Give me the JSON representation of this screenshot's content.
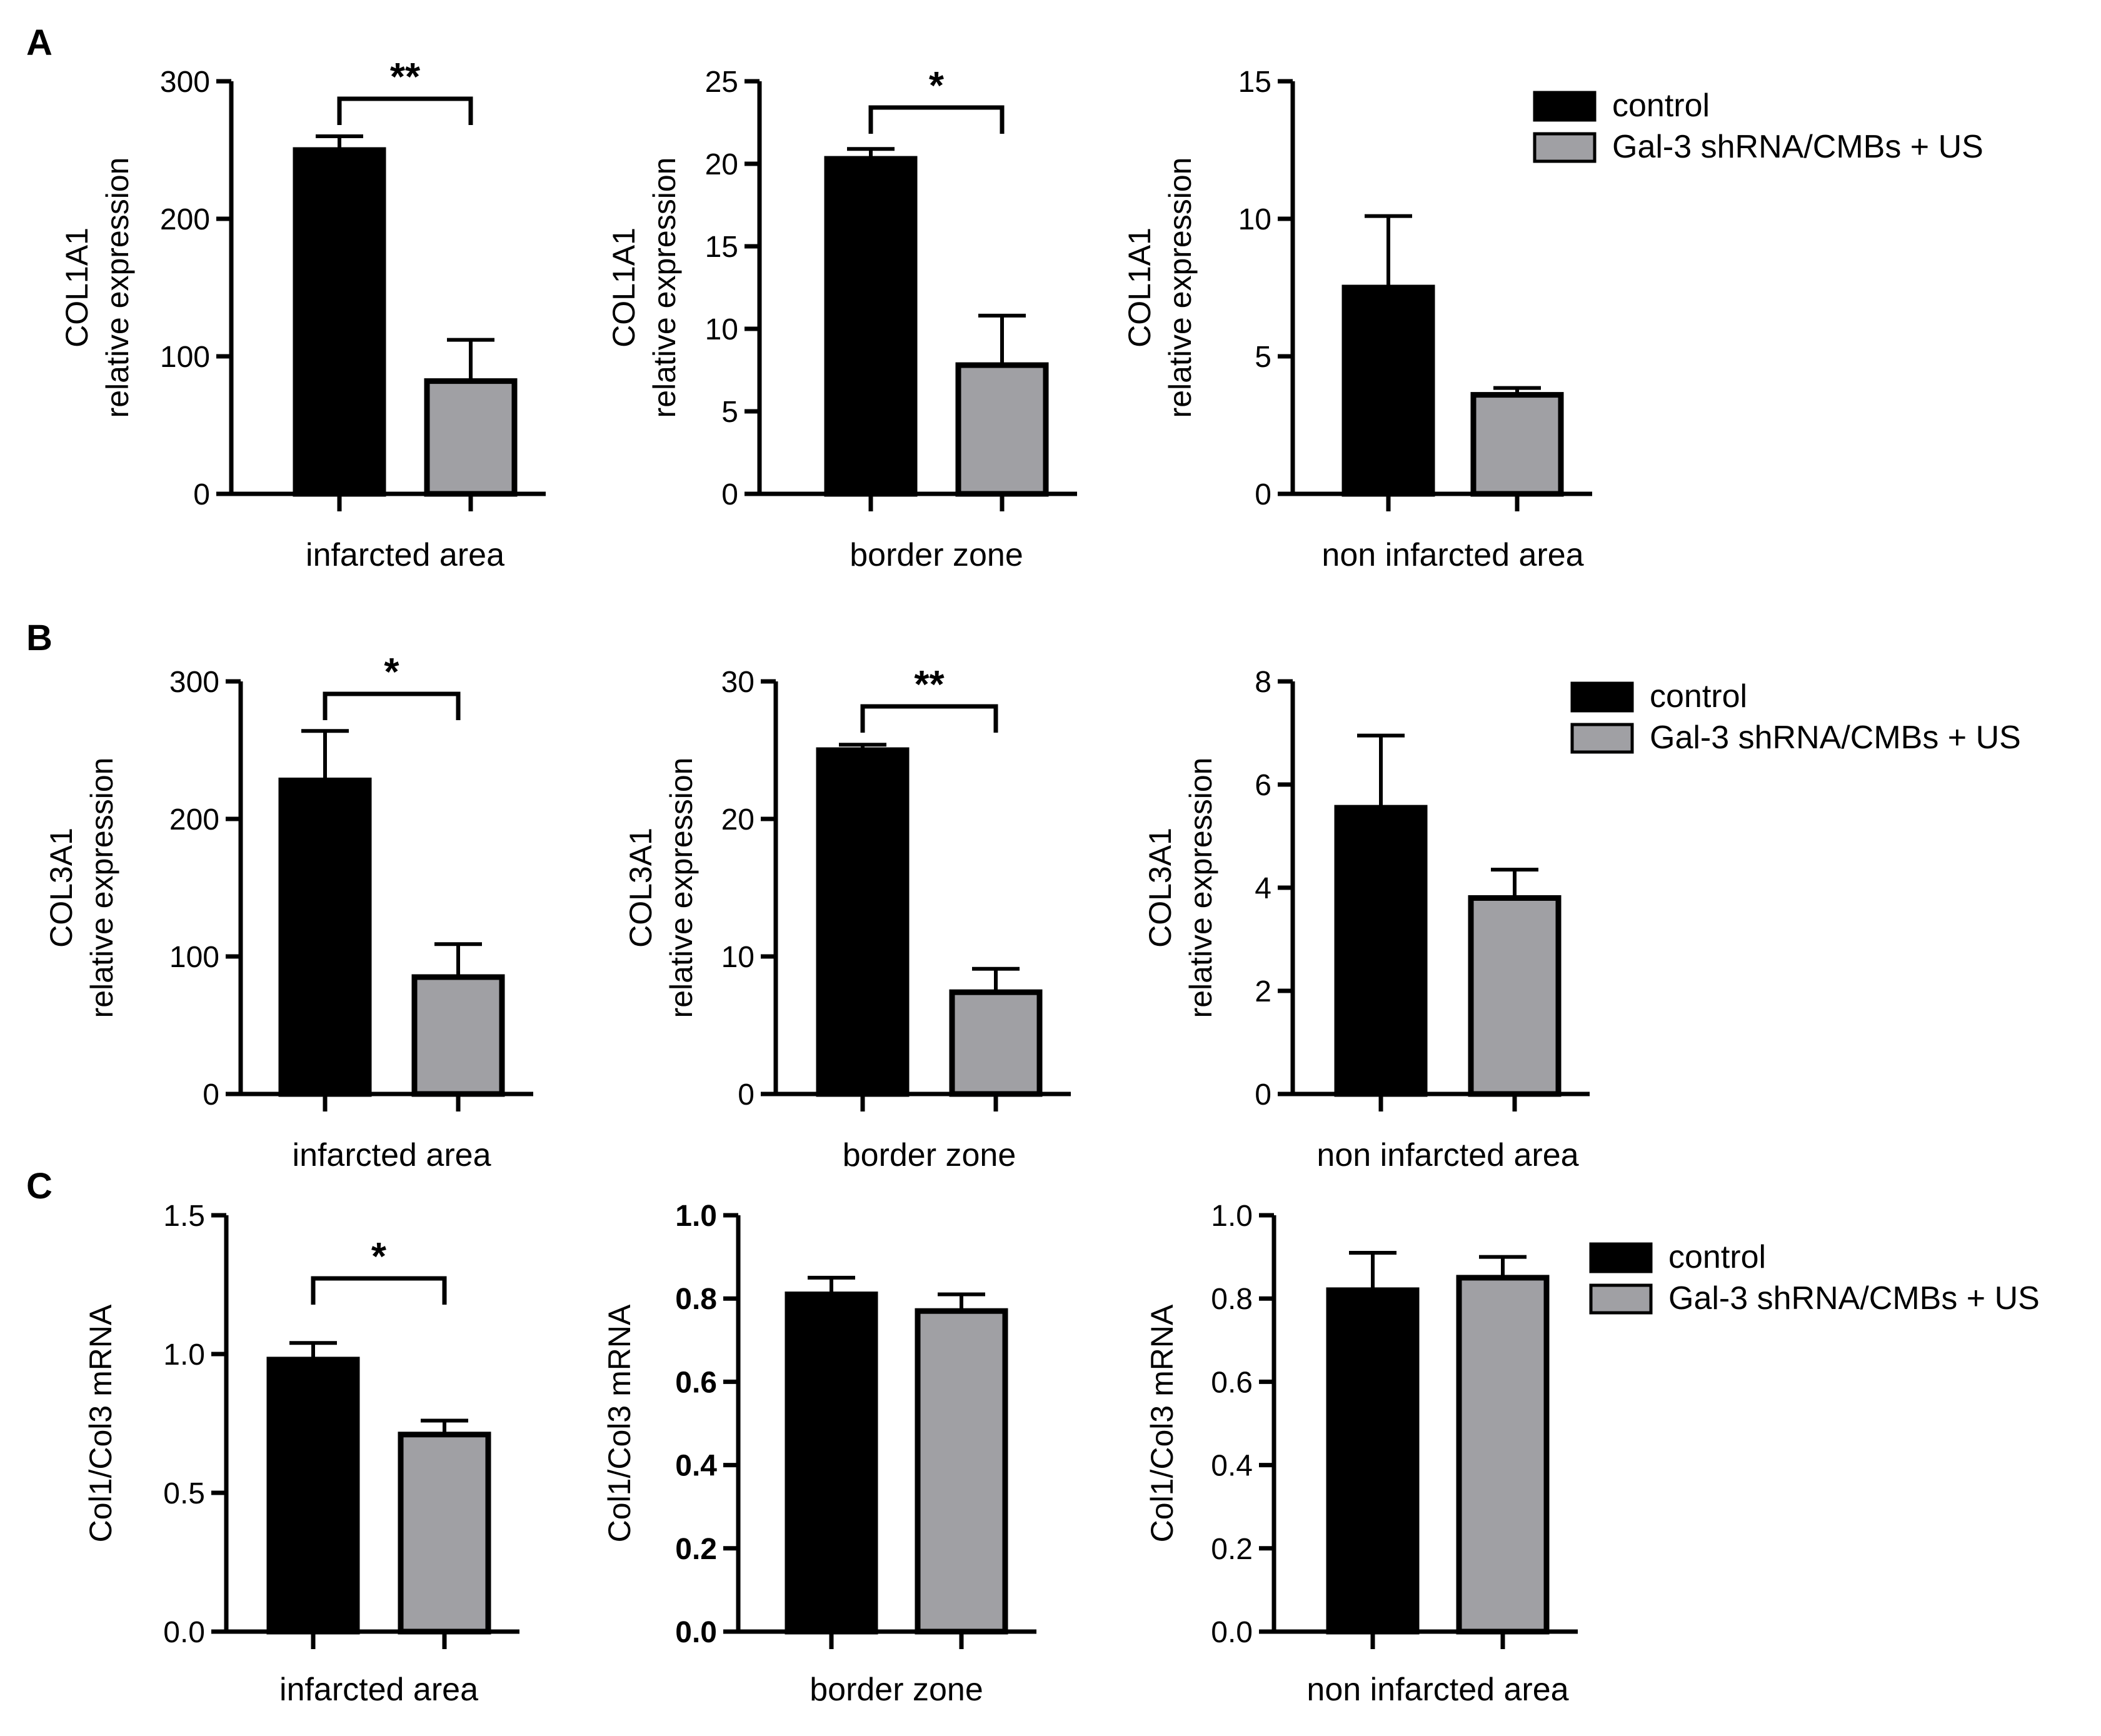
{
  "panel_letters": [
    "A",
    "B",
    "C"
  ],
  "legend": {
    "entries": [
      {
        "label": "control",
        "color": "#000000"
      },
      {
        "label": "Gal-3 shRNA/CMBs + US",
        "color": "#a0a0a4"
      }
    ]
  },
  "chart_data": [
    {
      "id": "A1",
      "type": "bar",
      "categories": [
        "control",
        "Gal-3 shRNA/CMBs + US"
      ],
      "values": [
        250,
        82
      ],
      "errors": [
        10,
        30
      ],
      "xlabel": "infarcted area",
      "ylabel": [
        "COL1A1",
        "relative expression"
      ],
      "ylim": [
        0,
        300
      ],
      "yticks": [
        "0",
        "100",
        "200",
        "300"
      ],
      "significance": "**"
    },
    {
      "id": "A2",
      "type": "bar",
      "categories": [
        "control",
        "Gal-3 shRNA/CMBs + US"
      ],
      "values": [
        20.3,
        7.8
      ],
      "errors": [
        0.6,
        3.0
      ],
      "xlabel": "border zone",
      "ylabel": [
        "COL1A1",
        "relative expression"
      ],
      "ylim": [
        0,
        25
      ],
      "yticks": [
        "0",
        "5",
        "10",
        "15",
        "20",
        "25"
      ],
      "significance": "*"
    },
    {
      "id": "A3",
      "type": "bar",
      "categories": [
        "control",
        "Gal-3 shRNA/CMBs + US"
      ],
      "values": [
        7.5,
        3.6
      ],
      "errors": [
        2.6,
        0.25
      ],
      "xlabel": "non infarcted area",
      "ylabel": [
        "COL1A1",
        "relative expression"
      ],
      "ylim": [
        0,
        15
      ],
      "yticks": [
        "0",
        "5",
        "10",
        "15"
      ],
      "significance": ""
    },
    {
      "id": "B1",
      "type": "bar",
      "categories": [
        "control",
        "Gal-3 shRNA/CMBs + US"
      ],
      "values": [
        228,
        85
      ],
      "errors": [
        36,
        24
      ],
      "xlabel": "infarcted area",
      "ylabel": [
        "COL3A1",
        "relative expression"
      ],
      "ylim": [
        0,
        300
      ],
      "yticks": [
        "0",
        "100",
        "200",
        "300"
      ],
      "significance": "*"
    },
    {
      "id": "B2",
      "type": "bar",
      "categories": [
        "control",
        "Gal-3 shRNA/CMBs + US"
      ],
      "values": [
        25,
        7.4
      ],
      "errors": [
        0.4,
        1.7
      ],
      "xlabel": "border zone",
      "ylabel": [
        "COL3A1",
        "relative expression"
      ],
      "ylim": [
        0,
        30
      ],
      "yticks": [
        "0",
        "10",
        "20",
        "30"
      ],
      "significance": "**"
    },
    {
      "id": "B3",
      "type": "bar",
      "categories": [
        "control",
        "Gal-3 shRNA/CMBs + US"
      ],
      "values": [
        5.55,
        3.8
      ],
      "errors": [
        1.4,
        0.55
      ],
      "xlabel": "non infarcted area",
      "ylabel": [
        "COL3A1",
        "relative expression"
      ],
      "ylim": [
        0,
        8
      ],
      "yticks": [
        "0",
        "2",
        "4",
        "6",
        "8"
      ],
      "significance": ""
    },
    {
      "id": "C1",
      "type": "bar",
      "categories": [
        "control",
        "Gal-3 shRNA/CMBs + US"
      ],
      "values": [
        0.98,
        0.71
      ],
      "errors": [
        0.06,
        0.05
      ],
      "xlabel": "infarcted area",
      "ylabel": [
        "Col1/Col3 mRNA"
      ],
      "ylim": [
        0,
        1.5
      ],
      "yticks": [
        "0.0",
        "0.5",
        "1.0",
        "1.5"
      ],
      "significance": "*"
    },
    {
      "id": "C2",
      "type": "bar",
      "categories": [
        "control",
        "Gal-3 shRNA/CMBs + US"
      ],
      "values": [
        0.81,
        0.77
      ],
      "errors": [
        0.04,
        0.04
      ],
      "xlabel": "border zone",
      "ylabel": [
        "Col1/Col3 mRNA"
      ],
      "ylim": [
        0,
        1.0
      ],
      "yticks": [
        "0.0",
        "0.2",
        "0.4",
        "0.6",
        "0.8",
        "1.0"
      ],
      "significance": ""
    },
    {
      "id": "C3",
      "type": "bar",
      "categories": [
        "control",
        "Gal-3 shRNA/CMBs + US"
      ],
      "values": [
        0.82,
        0.85
      ],
      "errors": [
        0.09,
        0.05
      ],
      "xlabel": "non infarcted area",
      "ylabel": [
        "Col1/Col3 mRNA"
      ],
      "ylim": [
        0,
        1.0
      ],
      "yticks": [
        "0.0",
        "0.2",
        "0.4",
        "0.6",
        "0.8",
        "1.0"
      ],
      "significance": ""
    }
  ]
}
